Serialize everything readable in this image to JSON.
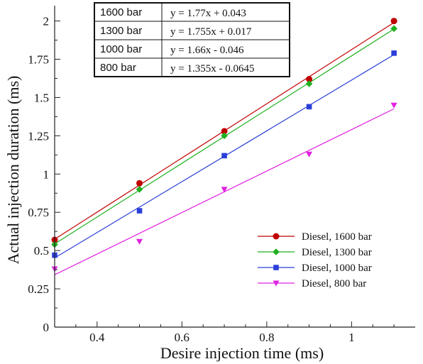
{
  "chart_data": {
    "type": "scatter",
    "xlabel": "Desire injection time (ms)",
    "ylabel": "Actual injection duration (ms)",
    "xlim": [
      0.3,
      1.15
    ],
    "ylim": [
      0,
      2.1
    ],
    "x_ticks": [
      0.4,
      0.6,
      0.8,
      1
    ],
    "x_tick_labels": [
      "0.4",
      "0.6",
      "0.8",
      "1"
    ],
    "y_ticks": [
      0,
      0.25,
      0.5,
      0.75,
      1,
      1.25,
      1.5,
      1.75,
      2
    ],
    "y_tick_labels": [
      "0",
      "0.25",
      "0.5",
      "0.75",
      "1",
      "1.25",
      "1.5",
      "1.75",
      "2"
    ],
    "legend_position": "right",
    "series": [
      {
        "name": "Diesel, 1600 bar",
        "color": "#c00000",
        "marker": "circle",
        "x": [
          0.3,
          0.5,
          0.7,
          0.9,
          1.1
        ],
        "y": [
          0.57,
          0.94,
          1.28,
          1.62,
          2.0
        ],
        "fit": {
          "slope": 1.77,
          "intercept": 0.043
        }
      },
      {
        "name": "Diesel, 1300 bar",
        "color": "#1fb01f",
        "marker": "diamond",
        "x": [
          0.3,
          0.5,
          0.7,
          0.9,
          1.1
        ],
        "y": [
          0.54,
          0.9,
          1.25,
          1.59,
          1.95
        ],
        "fit": {
          "slope": 1.755,
          "intercept": 0.017
        }
      },
      {
        "name": "Diesel, 1000 bar",
        "color": "#2a3fd8",
        "marker": "square",
        "x": [
          0.3,
          0.5,
          0.7,
          0.9,
          1.1
        ],
        "y": [
          0.47,
          0.76,
          1.12,
          1.44,
          1.79
        ],
        "fit": {
          "slope": 1.66,
          "intercept": -0.046
        }
      },
      {
        "name": "Diesel, 800 bar",
        "color": "#e020e0",
        "marker": "triangle-down",
        "x": [
          0.3,
          0.5,
          0.7,
          0.9,
          1.1
        ],
        "y": [
          0.38,
          0.56,
          0.9,
          1.13,
          1.45
        ],
        "fit": {
          "slope": 1.355,
          "intercept": -0.0645
        }
      }
    ],
    "equations_table": [
      {
        "label": "1600 bar",
        "equation": "y = 1.77x + 0.043"
      },
      {
        "label": "1300 bar",
        "equation": "y = 1.755x + 0.017"
      },
      {
        "label": "1000 bar",
        "equation": "y = 1.66x - 0.046"
      },
      {
        "label": "800 bar",
        "equation": "y = 1.355x - 0.0645"
      }
    ]
  }
}
